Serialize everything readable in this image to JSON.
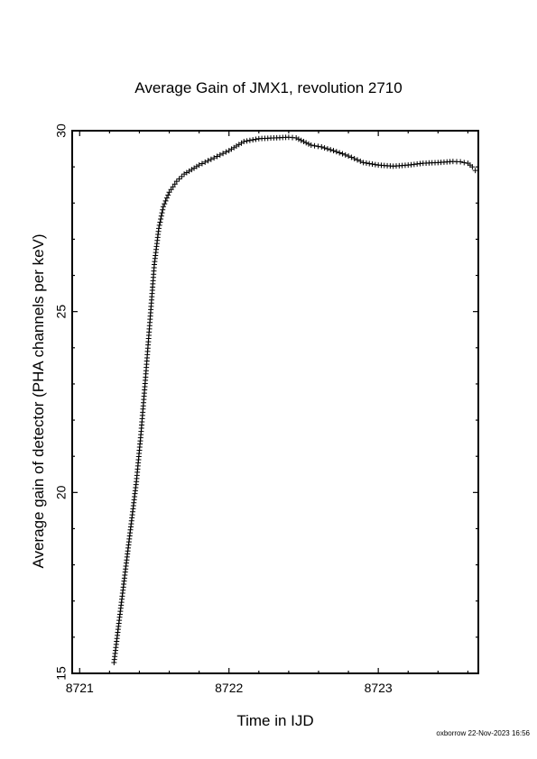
{
  "chart_data": {
    "type": "scatter",
    "title": "Average Gain of JMX1, revolution 2710",
    "xlabel": "Time in IJD",
    "ylabel": "Average gain of detector (PHA channels per keV)",
    "xlim": [
      8720.95,
      8723.67
    ],
    "ylim": [
      15,
      30
    ],
    "xticks": [
      8721,
      8722,
      8723
    ],
    "yticks": [
      15,
      20,
      25,
      30
    ],
    "marker": "+",
    "marker_color": "#000000",
    "grid": false,
    "series": [
      {
        "x": [
          8721.23,
          8721.26,
          8721.29,
          8721.32,
          8721.35,
          8721.38,
          8721.41,
          8721.44,
          8721.47,
          8721.5,
          8721.53,
          8721.56,
          8721.6,
          8721.65,
          8721.7,
          8721.8,
          8721.9,
          8722.0,
          8722.1,
          8722.2,
          8722.3,
          8722.4,
          8722.45,
          8722.5,
          8722.55,
          8722.62,
          8722.7,
          8722.8,
          8722.9,
          8723.0,
          8723.1,
          8723.2,
          8723.3,
          8723.4,
          8723.5,
          8723.55,
          8723.6,
          8723.63,
          8723.65
        ],
        "y": [
          15.3,
          16.3,
          17.3,
          18.3,
          19.3,
          20.3,
          21.6,
          23.1,
          24.7,
          26.3,
          27.3,
          27.9,
          28.3,
          28.6,
          28.8,
          29.05,
          29.25,
          29.45,
          29.7,
          29.78,
          29.8,
          29.82,
          29.8,
          29.7,
          29.6,
          29.55,
          29.45,
          29.3,
          29.12,
          29.05,
          29.02,
          29.05,
          29.1,
          29.12,
          29.15,
          29.14,
          29.1,
          29.0,
          28.9
        ]
      }
    ]
  },
  "footer": "oxborrow 22-Nov-2023 16:56"
}
